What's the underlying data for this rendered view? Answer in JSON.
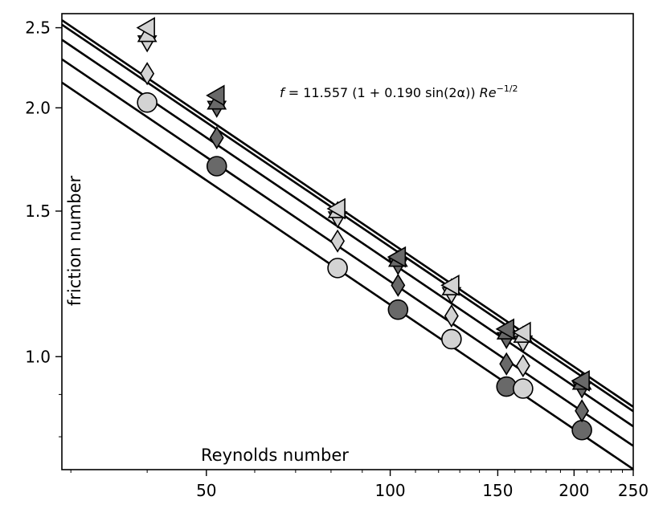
{
  "chart_data": {
    "type": "scatter",
    "title": "",
    "xlabel": "Reynolds number",
    "ylabel": "friction number",
    "x_scale": "log",
    "y_scale": "log",
    "xlim": [
      29,
      250
    ],
    "ylim": [
      0.73,
      2.6
    ],
    "x_ticks": [
      50,
      100,
      150,
      200,
      250
    ],
    "x_tick_labels": [
      "50",
      "100",
      "150",
      "200",
      "250"
    ],
    "y_ticks": [
      1.0,
      1.5,
      2.0,
      2.5
    ],
    "y_tick_labels": [
      "1.0",
      "1.5",
      "2.0",
      "2.5"
    ],
    "annotation": {
      "f": "f",
      "eq": " = 11.557 (1 + 0.190 sin(2α)) ",
      "re": "Re",
      "exp": "−1/2"
    },
    "grid": false,
    "colors": {
      "light": "#d3d3d3",
      "dark": "#696969",
      "line": "#000000"
    },
    "fit_lines": [
      {
        "coefficient": 11.557,
        "exponent": -0.5
      },
      {
        "coefficient": 12.33,
        "exponent": -0.5
      },
      {
        "coefficient": 13.02,
        "exponent": -0.5
      },
      {
        "coefficient": 13.58,
        "exponent": -0.5
      },
      {
        "coefficient": 13.75,
        "exponent": -0.5
      }
    ],
    "series": [
      {
        "marker": "circle",
        "points": [
          {
            "x": 40,
            "y": 2.03,
            "color": "light"
          },
          {
            "x": 52,
            "y": 1.7,
            "color": "dark"
          },
          {
            "x": 82,
            "y": 1.28,
            "color": "light"
          },
          {
            "x": 103,
            "y": 1.14,
            "color": "dark"
          },
          {
            "x": 126,
            "y": 1.05,
            "color": "light"
          },
          {
            "x": 155,
            "y": 0.92,
            "color": "dark"
          },
          {
            "x": 165,
            "y": 0.915,
            "color": "light"
          },
          {
            "x": 206,
            "y": 0.815,
            "color": "dark"
          }
        ]
      },
      {
        "marker": "diamond",
        "points": [
          {
            "x": 40,
            "y": 2.2,
            "color": "light"
          },
          {
            "x": 52,
            "y": 1.84,
            "color": "dark"
          },
          {
            "x": 82,
            "y": 1.38,
            "color": "light"
          },
          {
            "x": 103,
            "y": 1.22,
            "color": "dark"
          },
          {
            "x": 126,
            "y": 1.12,
            "color": "light"
          },
          {
            "x": 155,
            "y": 0.98,
            "color": "dark"
          },
          {
            "x": 165,
            "y": 0.975,
            "color": "light"
          },
          {
            "x": 206,
            "y": 0.86,
            "color": "dark"
          }
        ]
      },
      {
        "marker": "triangle-down",
        "points": [
          {
            "x": 40,
            "y": 2.4,
            "color": "light"
          },
          {
            "x": 52,
            "y": 2.0,
            "color": "dark"
          },
          {
            "x": 82,
            "y": 1.47,
            "color": "light"
          },
          {
            "x": 103,
            "y": 1.29,
            "color": "dark"
          },
          {
            "x": 126,
            "y": 1.19,
            "color": "light"
          },
          {
            "x": 155,
            "y": 1.05,
            "color": "dark"
          },
          {
            "x": 165,
            "y": 1.04,
            "color": "light"
          },
          {
            "x": 206,
            "y": 0.915,
            "color": "dark"
          }
        ]
      },
      {
        "marker": "triangle-up",
        "points": [
          {
            "x": 40,
            "y": 2.45,
            "color": "light"
          },
          {
            "x": 52,
            "y": 2.03,
            "color": "dark"
          },
          {
            "x": 82,
            "y": 1.5,
            "color": "light"
          },
          {
            "x": 103,
            "y": 1.31,
            "color": "dark"
          },
          {
            "x": 126,
            "y": 1.21,
            "color": "light"
          },
          {
            "x": 155,
            "y": 1.07,
            "color": "dark"
          },
          {
            "x": 165,
            "y": 1.06,
            "color": "light"
          },
          {
            "x": 206,
            "y": 0.93,
            "color": "dark"
          }
        ]
      },
      {
        "marker": "triangle-left",
        "points": [
          {
            "x": 40,
            "y": 2.5,
            "color": "light"
          },
          {
            "x": 52,
            "y": 2.07,
            "color": "dark"
          },
          {
            "x": 82,
            "y": 1.51,
            "color": "light"
          },
          {
            "x": 103,
            "y": 1.32,
            "color": "dark"
          },
          {
            "x": 126,
            "y": 1.22,
            "color": "light"
          },
          {
            "x": 155,
            "y": 1.08,
            "color": "dark"
          },
          {
            "x": 165,
            "y": 1.07,
            "color": "light"
          },
          {
            "x": 206,
            "y": 0.935,
            "color": "dark"
          }
        ]
      }
    ]
  }
}
